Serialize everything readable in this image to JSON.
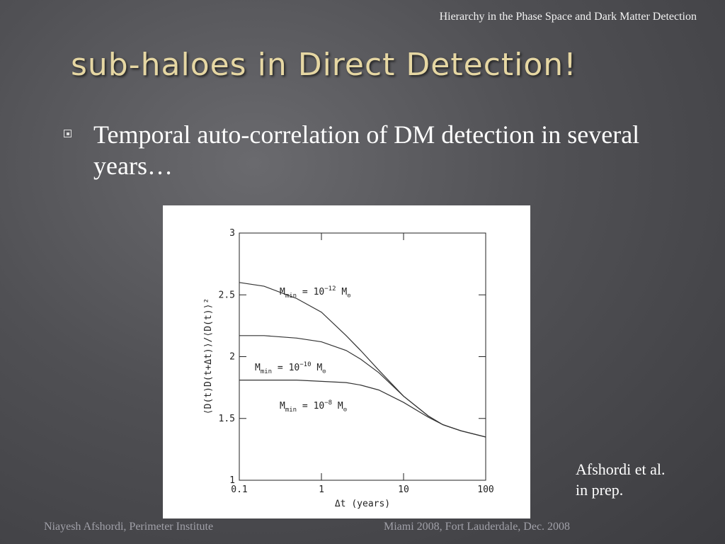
{
  "header": "Hierarchy in the Phase Space and Dark Matter Detection",
  "title": "sub-haloes in Direct Detection!",
  "bullets": [
    "Temporal auto-correlation of DM detection in several years…"
  ],
  "chart_data": {
    "type": "line",
    "xlabel": "Δt (years)",
    "ylabel": "⟨D(t)D(t+Δt)⟩/⟨D(t)⟩²",
    "xscale": "log",
    "x": [
      0.1,
      0.2,
      0.5,
      1,
      2,
      3,
      5,
      10,
      20,
      30,
      50,
      100
    ],
    "series": [
      {
        "name": [
          "M",
          "min",
          " = 10",
          "−12",
          " M",
          "⊙"
        ],
        "color": "#333333",
        "values": [
          2.6,
          2.57,
          2.47,
          2.36,
          2.17,
          2.05,
          1.89,
          1.68,
          1.52,
          1.45,
          1.4,
          1.35
        ]
      },
      {
        "name": [
          "M",
          "min",
          " = 10",
          "−10",
          " M",
          "⊙"
        ],
        "color": "#333333",
        "values": [
          2.17,
          2.17,
          2.15,
          2.12,
          2.05,
          1.98,
          1.87,
          1.68,
          1.52,
          1.45,
          1.4,
          1.35
        ]
      },
      {
        "name": [
          "M",
          "min",
          " = 10",
          "−8",
          " M",
          "⊙"
        ],
        "color": "#333333",
        "values": [
          1.81,
          1.81,
          1.81,
          1.8,
          1.79,
          1.77,
          1.73,
          1.63,
          1.51,
          1.45,
          1.4,
          1.35
        ]
      }
    ],
    "xlim": [
      0.1,
      100
    ],
    "xticks": [
      0.1,
      1,
      10,
      100
    ],
    "ylim": [
      1,
      3
    ],
    "yticks": [
      1,
      1.5,
      2,
      2.5,
      3
    ]
  },
  "citation": [
    "Afshordi et al.",
    "in prep."
  ],
  "footer": {
    "left": "Niayesh Afshordi, Perimeter Institute",
    "right": "Miami 2008, Fort Lauderdale, Dec. 2008"
  }
}
